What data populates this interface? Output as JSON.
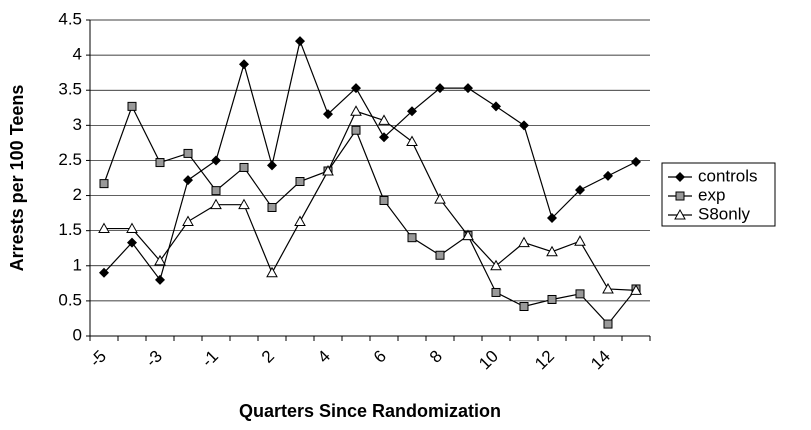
{
  "chart_data": {
    "type": "line",
    "x_label": "Quarters Since Randomization",
    "y_label": "Arrests per 100 Teens",
    "categories": [
      "-5",
      null,
      "-3",
      null,
      "-1",
      null,
      "2",
      null,
      "4",
      null,
      "6",
      null,
      "8",
      null,
      "10",
      null,
      "12",
      null,
      "14",
      null
    ],
    "series": [
      {
        "name": "controls",
        "color": "#000000",
        "marker": "diamond",
        "values": [
          0.9,
          1.33,
          0.8,
          2.22,
          2.5,
          3.87,
          2.43,
          4.2,
          3.16,
          3.53,
          2.83,
          3.2,
          3.53,
          3.53,
          3.27,
          3.0,
          1.68,
          2.08,
          2.28,
          2.48
        ]
      },
      {
        "name": "exp",
        "color": "#000000",
        "marker": "square",
        "values": [
          2.17,
          3.27,
          2.47,
          2.6,
          2.07,
          2.4,
          1.83,
          2.2,
          2.35,
          2.93,
          1.93,
          1.4,
          1.15,
          1.43,
          0.62,
          0.42,
          0.52,
          0.6,
          0.17,
          0.67
        ]
      },
      {
        "name": "S8only",
        "color": "#000000",
        "marker": "triangle",
        "values": [
          1.53,
          1.53,
          1.07,
          1.63,
          1.87,
          1.87,
          0.9,
          1.63,
          2.35,
          3.2,
          3.07,
          2.77,
          1.95,
          1.43,
          1.0,
          1.33,
          1.2,
          1.35,
          0.67,
          0.65
        ]
      }
    ],
    "ylim": [
      0,
      4.5
    ],
    "yticks": [
      0,
      0.5,
      1,
      1.5,
      2,
      2.5,
      3,
      3.5,
      4,
      4.5
    ],
    "grid": true,
    "legend": "right"
  }
}
